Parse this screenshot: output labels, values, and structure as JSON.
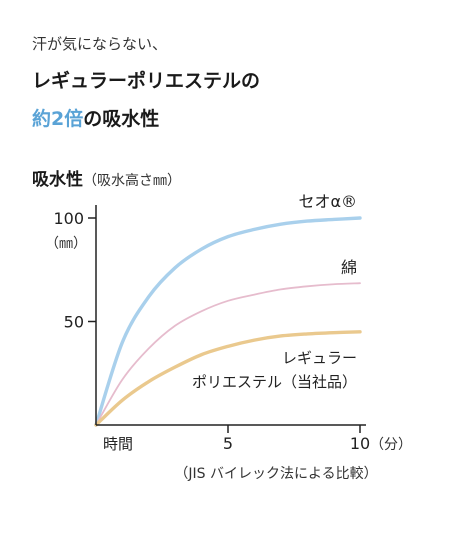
{
  "headline": {
    "line1": "汗が気にならない、",
    "line2": "レギュラーポリエステルの",
    "line3_accent": "約2倍",
    "line3_rest": "の吸水性"
  },
  "chart_data": {
    "type": "line",
    "title": "吸水性",
    "title_note": "（吸水高さ㎜）",
    "xlabel": "時間",
    "x_unit": "（分）",
    "y_unit": "（㎜）",
    "xlim": [
      0,
      10
    ],
    "ylim": [
      0,
      100
    ],
    "x_ticks": [
      {
        "value": 5,
        "label": "5"
      },
      {
        "value": 10,
        "label": "10"
      }
    ],
    "y_ticks": [
      {
        "value": 50,
        "label": "50"
      },
      {
        "value": 100,
        "label": "100"
      }
    ],
    "grid": false,
    "note": "（JIS バイレック法による比較）",
    "series": [
      {
        "name": "セオα®",
        "color": "#a9d0ec",
        "x": [
          0,
          1,
          2,
          3,
          4,
          5,
          6,
          7,
          8,
          9,
          10
        ],
        "y": [
          0,
          40,
          62,
          76,
          85,
          91,
          94.5,
          97,
          98.5,
          99.3,
          100
        ]
      },
      {
        "name": "綿",
        "color": "#e6bccd",
        "x": [
          0,
          1,
          2,
          3,
          4,
          5,
          6,
          7,
          8,
          9,
          10
        ],
        "y": [
          0,
          22,
          37,
          48,
          55,
          60,
          63,
          65.5,
          67,
          68,
          68.5
        ]
      },
      {
        "name": "レギュラーポリエステル（当社品）",
        "name_line1": "レギュラー",
        "name_line2": "ポリエステル（当社品）",
        "color": "#eac98e",
        "x": [
          0,
          1,
          2,
          3,
          4,
          5,
          6,
          7,
          8,
          9,
          10
        ],
        "y": [
          0,
          12,
          21,
          28,
          34,
          38,
          41,
          43,
          44,
          44.6,
          45
        ]
      }
    ]
  }
}
